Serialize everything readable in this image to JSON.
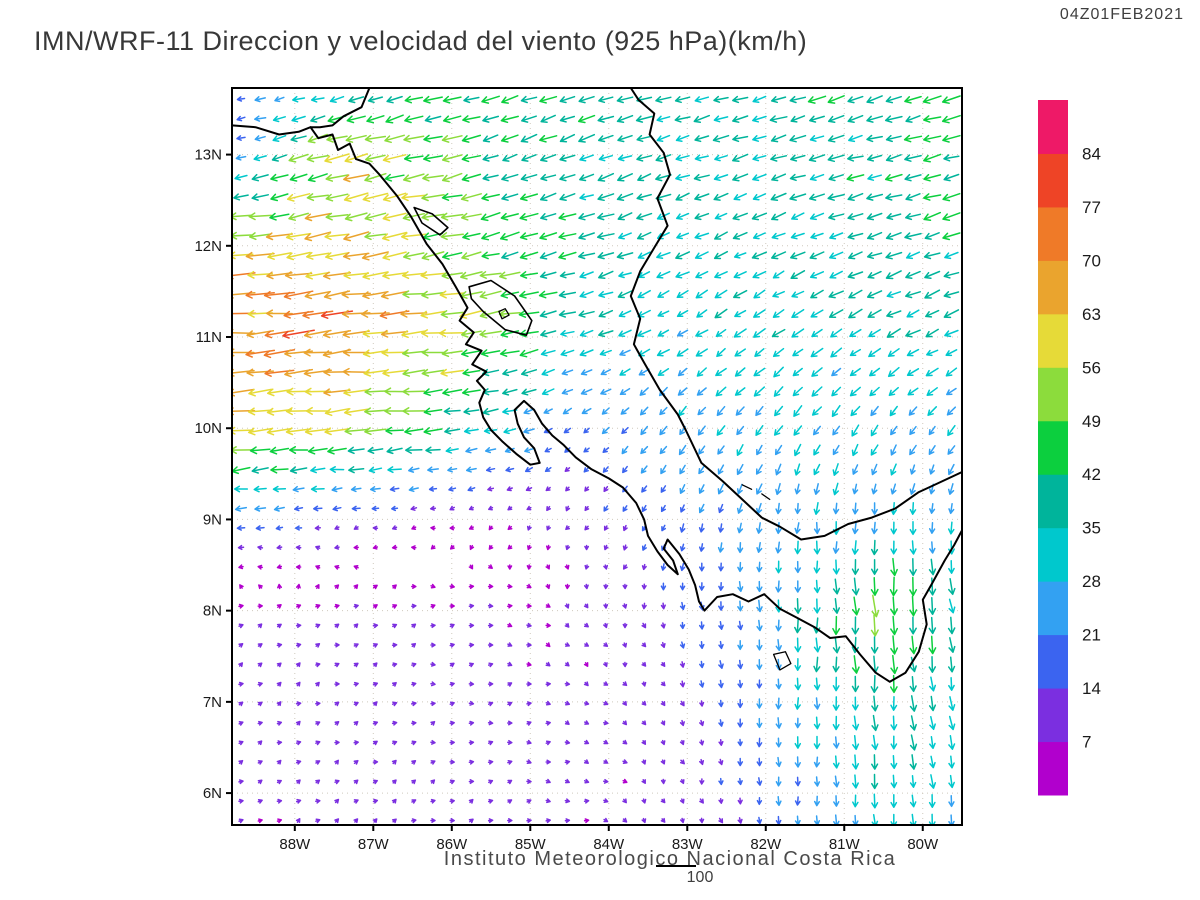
{
  "header": {
    "title": "IMN/WRF-11 Direccion y velocidad del viento (925 hPa)(km/h)",
    "timestamp": "04Z01FEB2021"
  },
  "footer": {
    "caption": "Instituto Meteorologico Nacional Costa Rica",
    "reference_value": "100"
  },
  "chart_data": {
    "type": "quiver",
    "title": "IMN/WRF-11 Direccion y velocidad del viento (925 hPa)(km/h)",
    "model": "IMN/WRF-11",
    "variable": "wind direction and speed",
    "level": "925 hPa",
    "units": "km/h",
    "valid_time": "04Z01FEB2021",
    "grid": "dotted",
    "reference_arrow": 100,
    "x_axis": {
      "ticks": [
        "88W",
        "87W",
        "86W",
        "85W",
        "84W",
        "83W",
        "82W",
        "81W",
        "80W"
      ],
      "values": [
        88,
        87,
        86,
        85,
        84,
        83,
        82,
        81,
        80
      ]
    },
    "y_axis": {
      "ticks": [
        "13N",
        "12N",
        "11N",
        "10N",
        "9N",
        "8N",
        "7N",
        "6N"
      ],
      "values": [
        13,
        12,
        11,
        10,
        9,
        8,
        7,
        6
      ]
    },
    "domain": {
      "lon_west": 88.8,
      "lon_east": 79.5,
      "lat_north": 13.73,
      "lat_south": 5.65
    },
    "colorbar": {
      "levels": [
        7,
        14,
        21,
        28,
        35,
        42,
        49,
        56,
        63,
        70,
        77,
        84
      ],
      "colors": [
        "#b100cd",
        "#7b2fe0",
        "#3b64f0",
        "#33a1f2",
        "#00c8cd",
        "#00b49b",
        "#0ccf3e",
        "#8cdc3c",
        "#e6da38",
        "#eaa42e",
        "#ef7a28",
        "#ee4426",
        "#ee1967"
      ]
    },
    "wind_grid": {
      "lons_w": [
        88.8,
        87.5,
        86.5,
        85.5,
        84.5,
        83.5,
        82.5,
        81.5,
        80.5,
        79.5
      ],
      "lats": [
        13.7,
        13.0,
        12.0,
        11.0,
        10.0,
        9.0,
        8.0,
        7.0,
        5.6
      ],
      "u": [
        [
          -18,
          -30,
          -40,
          -38,
          -36,
          -35,
          -36,
          -38,
          -40,
          -40
        ],
        [
          -20,
          -55,
          -50,
          -40,
          -36,
          -34,
          -34,
          -36,
          -38,
          -40
        ],
        [
          -60,
          -62,
          -55,
          -45,
          -38,
          -32,
          -30,
          -32,
          -36,
          -38
        ],
        [
          -70,
          -72,
          -65,
          -52,
          -35,
          -28,
          -26,
          -28,
          -30,
          -32
        ],
        [
          -58,
          -55,
          -45,
          -30,
          -15,
          -15,
          -18,
          -18,
          -16,
          -18
        ],
        [
          -22,
          -14,
          -8,
          -6,
          -6,
          -8,
          -6,
          -2,
          0,
          -4
        ],
        [
          6,
          7,
          8,
          8,
          5,
          2,
          3,
          0,
          4,
          8
        ],
        [
          7,
          8,
          9,
          9,
          8,
          4,
          2,
          0,
          2,
          5
        ],
        [
          6,
          7,
          8,
          9,
          8,
          5,
          2,
          0,
          2,
          4
        ]
      ],
      "v": [
        [
          -4,
          -8,
          -12,
          -12,
          -12,
          -10,
          -10,
          -12,
          -12,
          -12
        ],
        [
          -5,
          -15,
          -12,
          -12,
          -14,
          -12,
          -10,
          -10,
          -10,
          -10
        ],
        [
          -8,
          -10,
          -10,
          -10,
          -10,
          -12,
          -14,
          -14,
          -12,
          -12
        ],
        [
          -5,
          -6,
          -6,
          -8,
          -10,
          -14,
          -18,
          -18,
          -16,
          -14
        ],
        [
          -6,
          -5,
          -5,
          -6,
          -10,
          -18,
          -22,
          -24,
          -22,
          -20
        ],
        [
          -2,
          -2,
          -2,
          -4,
          -8,
          -14,
          -22,
          -26,
          -28,
          -26
        ],
        [
          3,
          3,
          2,
          0,
          -5,
          -12,
          -20,
          -34,
          -52,
          -36
        ],
        [
          4,
          4,
          3,
          2,
          -2,
          -8,
          -16,
          -28,
          -38,
          -32
        ],
        [
          4,
          4,
          4,
          3,
          0,
          -5,
          -12,
          -22,
          -30,
          -28
        ]
      ]
    },
    "coastlines": [
      {
        "name": "el-salvador-coast",
        "closed": false,
        "width": 2,
        "pts": [
          [
            88.8,
            13.32
          ],
          [
            88.5,
            13.3
          ],
          [
            88.2,
            13.22
          ],
          [
            87.95,
            13.25
          ],
          [
            87.8,
            13.3
          ]
        ]
      },
      {
        "name": "pacific-coast",
        "closed": false,
        "width": 2,
        "pts": [
          [
            87.05,
            13.73
          ],
          [
            87.15,
            13.52
          ],
          [
            87.38,
            13.42
          ],
          [
            87.52,
            13.32
          ],
          [
            87.68,
            13.3
          ],
          [
            87.8,
            13.3
          ],
          [
            87.7,
            13.18
          ],
          [
            87.52,
            13.22
          ],
          [
            87.45,
            13.05
          ],
          [
            87.3,
            13.12
          ],
          [
            87.22,
            12.95
          ],
          [
            87.05,
            12.9
          ],
          [
            86.92,
            12.78
          ],
          [
            86.7,
            12.55
          ],
          [
            86.52,
            12.32
          ],
          [
            86.32,
            12.02
          ],
          [
            86.12,
            11.8
          ],
          [
            85.95,
            11.55
          ],
          [
            85.8,
            11.32
          ],
          [
            85.9,
            11.18
          ],
          [
            85.72,
            11.05
          ],
          [
            85.82,
            10.92
          ],
          [
            85.62,
            10.85
          ],
          [
            85.74,
            10.7
          ],
          [
            85.56,
            10.62
          ],
          [
            85.68,
            10.52
          ],
          [
            85.58,
            10.42
          ],
          [
            85.65,
            10.28
          ],
          [
            85.6,
            10.12
          ],
          [
            85.5,
            9.98
          ],
          [
            85.35,
            9.85
          ],
          [
            85.18,
            9.72
          ],
          [
            85.0,
            9.6
          ],
          [
            84.88,
            9.62
          ],
          [
            84.95,
            9.78
          ],
          [
            85.08,
            9.9
          ],
          [
            85.16,
            10.05
          ],
          [
            85.2,
            10.2
          ],
          [
            85.08,
            10.3
          ],
          [
            84.95,
            10.2
          ],
          [
            84.85,
            10.05
          ],
          [
            84.72,
            9.92
          ],
          [
            84.58,
            9.82
          ],
          [
            84.42,
            9.68
          ],
          [
            84.22,
            9.55
          ],
          [
            84.0,
            9.45
          ],
          [
            83.82,
            9.35
          ],
          [
            83.65,
            9.18
          ],
          [
            83.55,
            9.0
          ],
          [
            83.5,
            8.82
          ],
          [
            83.38,
            8.65
          ],
          [
            83.25,
            8.5
          ],
          [
            83.12,
            8.4
          ],
          [
            83.18,
            8.55
          ],
          [
            83.3,
            8.68
          ],
          [
            83.25,
            8.78
          ],
          [
            83.1,
            8.62
          ],
          [
            82.98,
            8.45
          ],
          [
            82.9,
            8.28
          ],
          [
            82.85,
            8.1
          ],
          [
            82.78,
            8.0
          ],
          [
            82.62,
            8.15
          ],
          [
            82.42,
            8.18
          ],
          [
            82.22,
            8.1
          ],
          [
            82.02,
            8.18
          ],
          [
            81.82,
            8.02
          ],
          [
            81.6,
            7.92
          ],
          [
            81.38,
            7.82
          ],
          [
            81.18,
            7.7
          ],
          [
            80.98,
            7.72
          ],
          [
            80.8,
            7.52
          ],
          [
            80.6,
            7.32
          ],
          [
            80.42,
            7.22
          ],
          [
            80.22,
            7.32
          ],
          [
            80.05,
            7.55
          ],
          [
            79.95,
            7.85
          ],
          [
            80.0,
            8.12
          ],
          [
            79.88,
            8.3
          ],
          [
            79.72,
            8.55
          ],
          [
            79.6,
            8.72
          ],
          [
            79.5,
            8.88
          ]
        ]
      },
      {
        "name": "caribbean-coast",
        "closed": false,
        "width": 2,
        "pts": [
          [
            79.5,
            9.52
          ],
          [
            79.8,
            9.4
          ],
          [
            80.05,
            9.3
          ],
          [
            80.35,
            9.12
          ],
          [
            80.65,
            9.02
          ],
          [
            80.95,
            8.95
          ],
          [
            81.25,
            8.82
          ],
          [
            81.55,
            8.78
          ],
          [
            81.82,
            8.92
          ],
          [
            82.05,
            9.02
          ],
          [
            82.3,
            9.22
          ],
          [
            82.55,
            9.42
          ],
          [
            82.82,
            9.62
          ],
          [
            83.02,
            9.98
          ],
          [
            83.12,
            10.15
          ],
          [
            83.35,
            10.42
          ],
          [
            83.55,
            10.72
          ],
          [
            83.68,
            10.92
          ],
          [
            83.6,
            11.2
          ],
          [
            83.72,
            11.45
          ],
          [
            83.6,
            11.72
          ],
          [
            83.42,
            11.98
          ],
          [
            83.25,
            12.22
          ],
          [
            83.38,
            12.52
          ],
          [
            83.22,
            12.78
          ],
          [
            83.3,
            13.02
          ],
          [
            83.48,
            13.22
          ],
          [
            83.42,
            13.45
          ],
          [
            83.62,
            13.6
          ],
          [
            83.72,
            13.73
          ]
        ]
      },
      {
        "name": "lake-nicaragua",
        "closed": true,
        "width": 1.6,
        "pts": [
          [
            85.78,
            11.55
          ],
          [
            85.5,
            11.62
          ],
          [
            85.2,
            11.45
          ],
          [
            84.98,
            11.18
          ],
          [
            85.05,
            11.02
          ],
          [
            85.32,
            11.08
          ],
          [
            85.6,
            11.28
          ],
          [
            85.75,
            11.42
          ]
        ]
      },
      {
        "name": "lake-managua",
        "closed": true,
        "width": 1.6,
        "pts": [
          [
            86.48,
            12.42
          ],
          [
            86.25,
            12.35
          ],
          [
            86.05,
            12.2
          ],
          [
            86.15,
            12.12
          ],
          [
            86.38,
            12.25
          ]
        ]
      },
      {
        "name": "ometepe-island",
        "closed": true,
        "width": 1.3,
        "pts": [
          [
            85.4,
            11.28
          ],
          [
            85.32,
            11.31
          ],
          [
            85.27,
            11.24
          ],
          [
            85.36,
            11.2
          ]
        ]
      },
      {
        "name": "coiba-island",
        "closed": true,
        "width": 1.3,
        "pts": [
          [
            81.9,
            7.52
          ],
          [
            81.75,
            7.55
          ],
          [
            81.68,
            7.42
          ],
          [
            81.82,
            7.35
          ]
        ]
      },
      {
        "name": "bocas-islet-1",
        "closed": false,
        "width": 1.3,
        "pts": [
          [
            82.3,
            9.38
          ],
          [
            82.18,
            9.33
          ]
        ]
      },
      {
        "name": "bocas-islet-2",
        "closed": false,
        "width": 1.3,
        "pts": [
          [
            82.05,
            9.28
          ],
          [
            81.95,
            9.22
          ]
        ]
      }
    ]
  }
}
